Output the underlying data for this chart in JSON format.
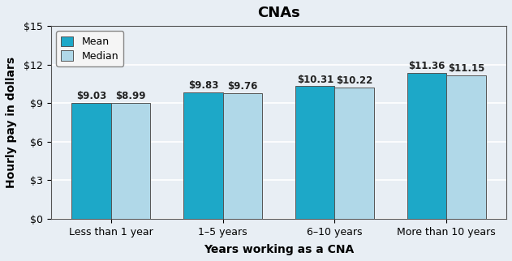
{
  "title": "CNAs",
  "xlabel": "Years working as a CNA",
  "ylabel": "Hourly pay in dollars",
  "categories": [
    "Less than 1 year",
    "1–5 years",
    "6–10 years",
    "More than 10 years"
  ],
  "mean_values": [
    9.03,
    9.83,
    10.31,
    11.36
  ],
  "median_values": [
    8.99,
    9.76,
    10.22,
    11.15
  ],
  "mean_color": "#1da8c8",
  "median_color": "#b0d8e8",
  "mean_label": "Mean",
  "median_label": "Median",
  "ylim": [
    0,
    15
  ],
  "yticks": [
    0,
    3,
    6,
    9,
    12,
    15
  ],
  "ytick_labels": [
    "$0",
    "$3",
    "$6",
    "$9",
    "$12",
    "$15"
  ],
  "bar_width": 0.35,
  "background_color": "#e8eef4",
  "grid_color": "#ffffff",
  "title_fontsize": 13,
  "axis_label_fontsize": 10,
  "tick_fontsize": 9,
  "annotation_fontsize": 8.5
}
